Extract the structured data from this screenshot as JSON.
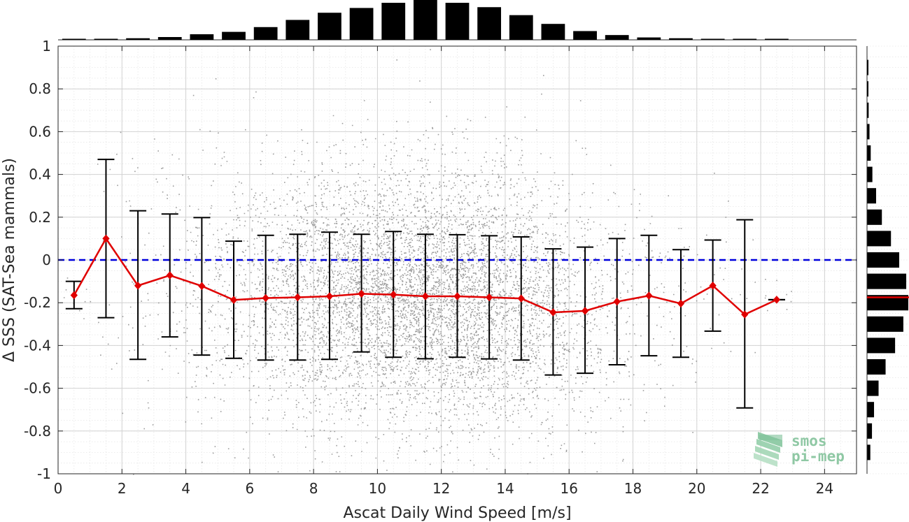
{
  "chart_data": {
    "type": "scatter",
    "xlabel": "Ascat Daily Wind Speed [m/s]",
    "ylabel": "Δ SSS (SAT-Sea mammals)",
    "xlim": [
      0,
      25
    ],
    "ylim": [
      -1,
      1
    ],
    "xticks": [
      0,
      2,
      4,
      6,
      8,
      10,
      12,
      14,
      16,
      18,
      20,
      22,
      24
    ],
    "yticks": [
      -1,
      -0.8,
      -0.6,
      -0.4,
      -0.2,
      0,
      0.2,
      0.4,
      0.6,
      0.8,
      1
    ],
    "grid": true,
    "reference_line": {
      "y": 0,
      "color": "#0000dd",
      "style": "dashed"
    },
    "scatter_color": "#8c8c8c",
    "scatter_note": "dense cloud of individual collocation points",
    "binned_mean": {
      "color": "#e00000",
      "x": [
        0.5,
        1.5,
        2.5,
        3.5,
        4.5,
        5.5,
        6.5,
        7.5,
        8.5,
        9.5,
        10.5,
        11.5,
        12.5,
        13.5,
        14.5,
        15.5,
        16.5,
        17.5,
        18.5,
        19.5,
        20.5,
        21.5,
        22.5
      ],
      "y": [
        -0.165,
        0.1,
        -0.12,
        -0.072,
        -0.122,
        -0.187,
        -0.178,
        -0.175,
        -0.17,
        -0.158,
        -0.162,
        -0.17,
        -0.17,
        -0.175,
        -0.18,
        -0.245,
        -0.238,
        -0.195,
        -0.167,
        -0.204,
        -0.12,
        -0.255,
        -0.186
      ]
    },
    "error_bars": {
      "color": "#000000",
      "x": [
        0.5,
        1.5,
        2.5,
        3.5,
        4.5,
        5.5,
        6.5,
        7.5,
        8.5,
        9.5,
        10.5,
        11.5,
        12.5,
        13.5,
        14.5,
        15.5,
        16.5,
        17.5,
        18.5,
        19.5,
        20.5,
        21.5,
        22.5
      ],
      "upper": [
        -0.1,
        0.47,
        0.23,
        0.215,
        0.198,
        0.088,
        0.115,
        0.12,
        0.13,
        0.12,
        0.133,
        0.12,
        0.118,
        0.113,
        0.108,
        0.052,
        0.06,
        0.1,
        0.115,
        0.048,
        0.093,
        0.188,
        -0.186
      ],
      "lower": [
        -0.228,
        -0.27,
        -0.465,
        -0.36,
        -0.445,
        -0.46,
        -0.468,
        -0.468,
        -0.465,
        -0.43,
        -0.455,
        -0.462,
        -0.455,
        -0.463,
        -0.468,
        -0.538,
        -0.53,
        -0.49,
        -0.448,
        -0.455,
        -0.333,
        -0.692,
        -0.186
      ]
    },
    "x_histogram": {
      "color": "#000000",
      "bin_centers": [
        0.5,
        1.5,
        2.5,
        3.5,
        4.5,
        5.5,
        6.5,
        7.5,
        8.5,
        9.5,
        10.5,
        11.5,
        12.5,
        13.5,
        14.5,
        15.5,
        16.5,
        17.5,
        18.5,
        19.5,
        20.5,
        21.5,
        22.5
      ],
      "relative_counts": [
        0.01,
        0.02,
        0.04,
        0.07,
        0.14,
        0.2,
        0.32,
        0.5,
        0.68,
        0.8,
        0.93,
        1.0,
        0.93,
        0.82,
        0.62,
        0.4,
        0.22,
        0.12,
        0.06,
        0.04,
        0.02,
        0.01,
        0.01
      ]
    },
    "y_histogram": {
      "color": "#000000",
      "mean_line": {
        "y": -0.175,
        "color": "#e00000"
      },
      "bin_centers": [
        0.9,
        0.8,
        0.7,
        0.6,
        0.5,
        0.4,
        0.3,
        0.2,
        0.1,
        0.0,
        -0.1,
        -0.2,
        -0.3,
        -0.4,
        -0.5,
        -0.6,
        -0.7,
        -0.8,
        -0.9
      ],
      "relative_counts": [
        0.02,
        0.03,
        0.04,
        0.06,
        0.09,
        0.13,
        0.22,
        0.36,
        0.58,
        0.78,
        0.95,
        1.0,
        0.88,
        0.68,
        0.45,
        0.28,
        0.17,
        0.12,
        0.08
      ]
    }
  },
  "logo": {
    "line1": "smos",
    "line2": "pi-mep"
  }
}
